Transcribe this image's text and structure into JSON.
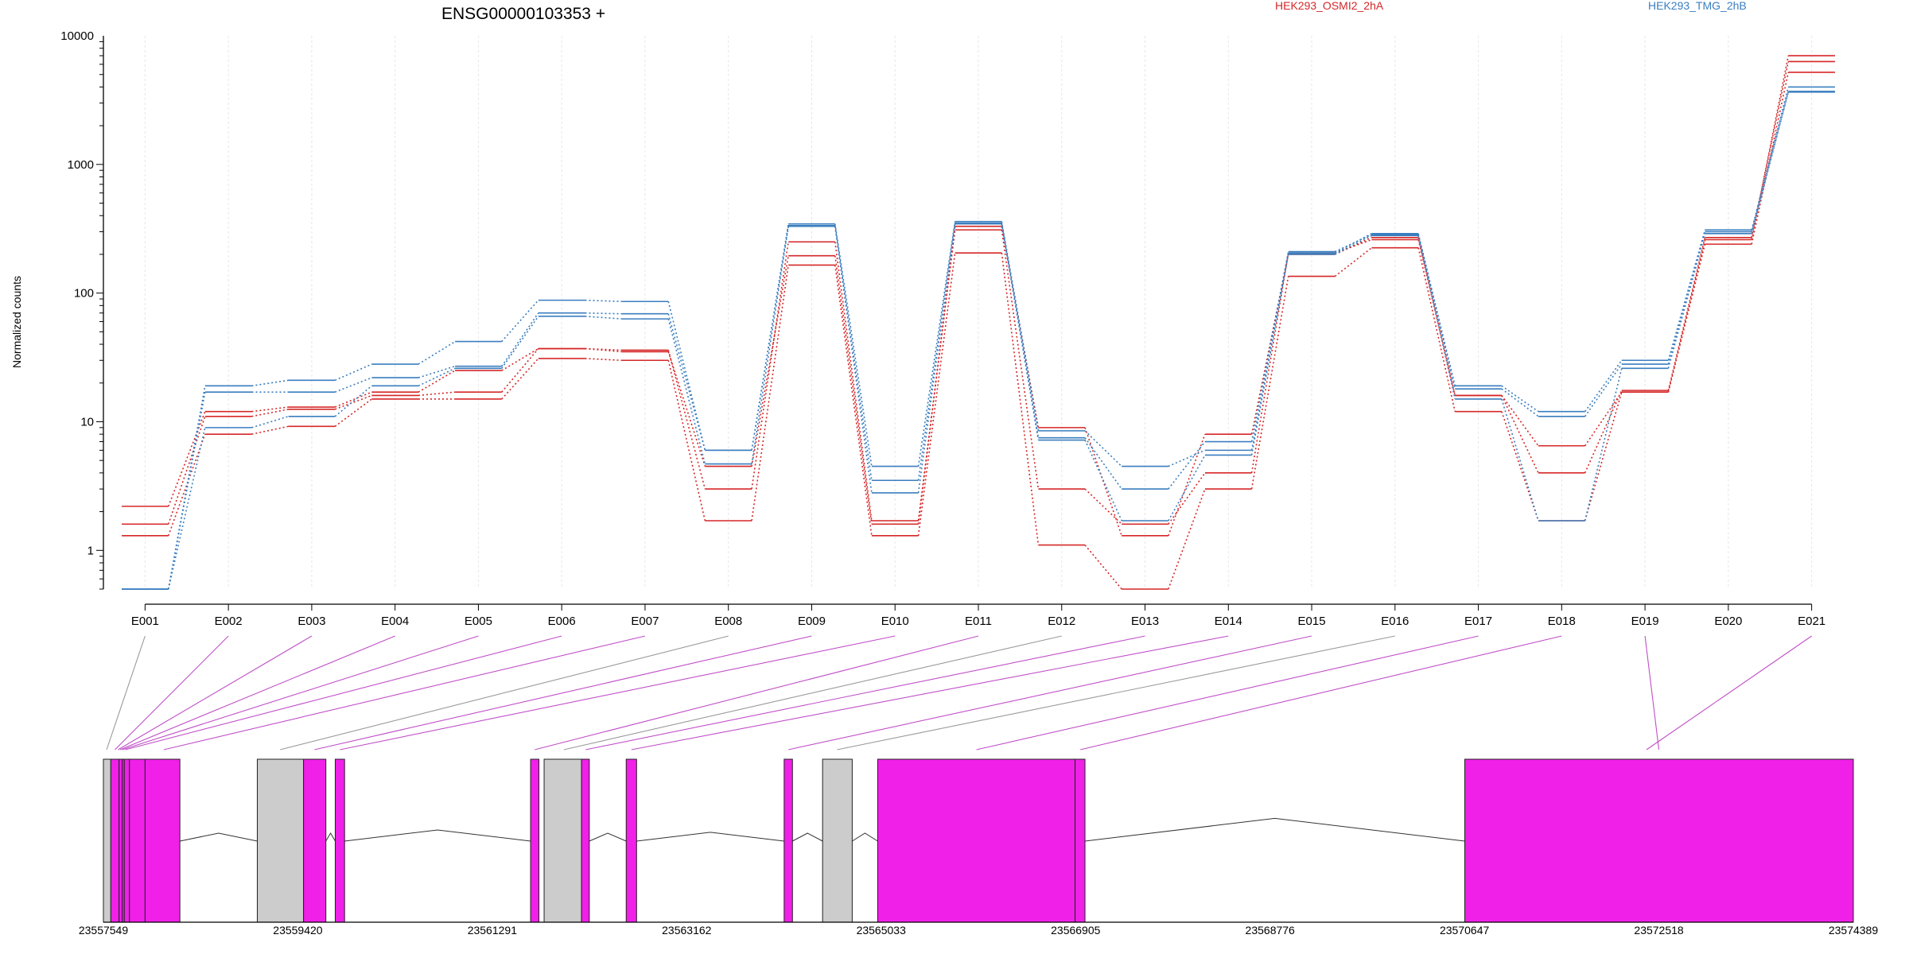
{
  "chart_data": {
    "type": "line",
    "title": "ENSG00000103353 +",
    "ylabel": "Normalized counts",
    "yscale": "log",
    "ylim": [
      0.5,
      10000
    ],
    "yticks": [
      "1",
      "10",
      "100",
      "1000",
      "10000"
    ],
    "categories": [
      "E001",
      "E002",
      "E003",
      "E004",
      "E005",
      "E006",
      "E007",
      "E008",
      "E009",
      "E010",
      "E011",
      "E012",
      "E013",
      "E014",
      "E015",
      "E016",
      "E017",
      "E018",
      "E019",
      "E020",
      "E021"
    ],
    "groups": [
      {
        "name": "HEK293_OSMI2_2hA",
        "color": "#d62728"
      },
      {
        "name": "HEK293_TMG_2hB",
        "color": "#3a7ebf"
      }
    ],
    "series": [
      {
        "group": 0,
        "values": [
          1.6,
          11,
          12.5,
          16,
          17,
          37,
          36,
          3,
          250,
          1.7,
          310,
          3,
          1.6,
          4,
          205,
          260,
          16,
          6.5,
          17,
          260,
          7000
        ]
      },
      {
        "group": 0,
        "values": [
          2.2,
          12,
          13,
          17,
          25,
          37,
          35,
          4.5,
          195,
          1.6,
          330,
          9,
          1.3,
          8,
          200,
          270,
          16,
          4,
          17.5,
          270,
          6300
        ]
      },
      {
        "group": 0,
        "values": [
          1.3,
          8,
          9.2,
          15,
          15,
          31,
          30,
          1.7,
          165,
          1.3,
          205,
          1.1,
          0.5,
          3,
          135,
          225,
          12,
          1.7,
          17,
          240,
          5200
        ]
      },
      {
        "group": 1,
        "values": [
          0.5,
          19,
          21,
          28,
          42,
          88,
          86,
          6,
          345,
          4.5,
          360,
          8.5,
          4.5,
          6,
          205,
          290,
          19,
          12,
          30,
          310,
          4000
        ]
      },
      {
        "group": 1,
        "values": [
          0.5,
          17,
          17,
          22,
          27,
          70,
          69,
          6,
          335,
          3.5,
          350,
          7.5,
          3,
          7,
          210,
          285,
          18,
          11,
          28,
          300,
          3700
        ]
      },
      {
        "group": 1,
        "values": [
          0.5,
          9,
          11,
          19,
          26,
          66,
          63,
          4.7,
          330,
          2.8,
          345,
          7.2,
          1.7,
          5.5,
          200,
          280,
          15,
          1.7,
          26,
          290,
          3650
        ]
      }
    ],
    "genomic_axis": {
      "ticks": [
        "23557549",
        "23559420",
        "23561291",
        "23563162",
        "23565033",
        "23566905",
        "23568776",
        "23570647",
        "23572518",
        "23574389"
      ],
      "start": 23557549,
      "end": 23574389
    },
    "gene_model": {
      "exon_color": "#f020e8",
      "other_color": "#cccccc",
      "blocks": [
        {
          "kind": "other",
          "start": 23557549,
          "end": 23557620
        },
        {
          "kind": "exon",
          "start": 23557620,
          "end": 23557700
        },
        {
          "kind": "exon",
          "start": 23557700,
          "end": 23557730
        },
        {
          "kind": "exon",
          "start": 23557730,
          "end": 23557750
        },
        {
          "kind": "exon",
          "start": 23557750,
          "end": 23557800
        },
        {
          "kind": "exon",
          "start": 23557800,
          "end": 23557950
        },
        {
          "kind": "exon",
          "start": 23557950,
          "end": 23558285
        },
        {
          "kind": "other",
          "start": 23559030,
          "end": 23559475
        },
        {
          "kind": "exon",
          "start": 23559475,
          "end": 23559690
        },
        {
          "kind": "exon",
          "start": 23559780,
          "end": 23559870
        },
        {
          "kind": "exon",
          "start": 23561660,
          "end": 23561740
        },
        {
          "kind": "other",
          "start": 23561790,
          "end": 23562150
        },
        {
          "kind": "exon",
          "start": 23562150,
          "end": 23562225
        },
        {
          "kind": "exon",
          "start": 23562580,
          "end": 23562680
        },
        {
          "kind": "exon",
          "start": 23564100,
          "end": 23564180
        },
        {
          "kind": "other",
          "start": 23564470,
          "end": 23564755
        },
        {
          "kind": "exon",
          "start": 23565000,
          "end": 23566900
        },
        {
          "kind": "exon",
          "start": 23566900,
          "end": 23566995
        },
        {
          "kind": "exon",
          "start": 23570650,
          "end": 23574389
        }
      ],
      "exon_connectors": [
        {
          "exon": "E001",
          "pos": 23557580,
          "kind": "other"
        },
        {
          "exon": "E002",
          "pos": 23557660,
          "kind": "exon"
        },
        {
          "exon": "E003",
          "pos": 23557690,
          "kind": "exon"
        },
        {
          "exon": "E004",
          "pos": 23557710,
          "kind": "exon"
        },
        {
          "exon": "E005",
          "pos": 23557730,
          "kind": "exon"
        },
        {
          "exon": "E006",
          "pos": 23557760,
          "kind": "exon"
        },
        {
          "exon": "E007",
          "pos": 23558130,
          "kind": "exon"
        },
        {
          "exon": "E008",
          "pos": 23559250,
          "kind": "other"
        },
        {
          "exon": "E009",
          "pos": 23559580,
          "kind": "exon"
        },
        {
          "exon": "E010",
          "pos": 23559825,
          "kind": "exon"
        },
        {
          "exon": "E011",
          "pos": 23561700,
          "kind": "exon"
        },
        {
          "exon": "E012",
          "pos": 23561980,
          "kind": "other"
        },
        {
          "exon": "E013",
          "pos": 23562190,
          "kind": "exon"
        },
        {
          "exon": "E014",
          "pos": 23562630,
          "kind": "exon"
        },
        {
          "exon": "E015",
          "pos": 23564140,
          "kind": "exon"
        },
        {
          "exon": "E016",
          "pos": 23564610,
          "kind": "other"
        },
        {
          "exon": "E017",
          "pos": 23565950,
          "kind": "exon"
        },
        {
          "exon": "E018",
          "pos": 23566950,
          "kind": "exon"
        },
        {
          "exon": "E019",
          "pos": 23572518,
          "kind": "exon"
        }
      ]
    }
  }
}
